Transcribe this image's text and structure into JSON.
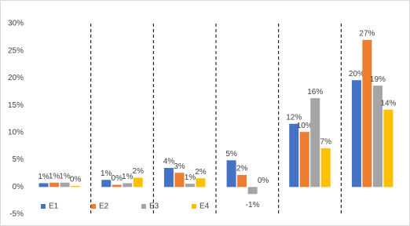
{
  "chart_data": {
    "type": "bar",
    "categories": [
      null,
      null,
      null,
      null,
      null,
      null
    ],
    "series": [
      {
        "name": "E1",
        "color": "#4472c4",
        "values": [
          0.7,
          1.3,
          3.5,
          4.9,
          11.6,
          19.6
        ],
        "value_labels": [
          "1%",
          "1%",
          "4%",
          "5%",
          "12%",
          "20%"
        ]
      },
      {
        "name": "E2",
        "color": "#ed7d31",
        "values": [
          0.8,
          0.4,
          2.6,
          2.2,
          10.1,
          27
        ],
        "value_labels": [
          "1%",
          "0%",
          "3%",
          "2%",
          "10%",
          "27%"
        ]
      },
      {
        "name": "E3",
        "color": "#a5a5a5",
        "values": [
          0.8,
          0.7,
          0.6,
          -1.3,
          16.3,
          18.6
        ],
        "value_labels": [
          "1%",
          "1%",
          "1%",
          "-1%",
          "16%",
          "19%"
        ]
      },
      {
        "name": "E4",
        "color": "#ffc000",
        "values": [
          0.2,
          1.7,
          1.6,
          0.0,
          7.1,
          14.2
        ],
        "value_labels": [
          "0%",
          "2%",
          "2%",
          "0%",
          "7%",
          "14%"
        ]
      }
    ],
    "ylim": [
      -5,
      30
    ],
    "yticks": [
      {
        "value": -5,
        "label": "-5%"
      },
      {
        "value": 0,
        "label": "0%"
      },
      {
        "value": 5,
        "label": "5%"
      },
      {
        "value": 10,
        "label": "10%"
      },
      {
        "value": 15,
        "label": "15%"
      },
      {
        "value": 20,
        "label": "20%"
      },
      {
        "value": 25,
        "label": "25%"
      },
      {
        "value": 30,
        "label": "30%"
      }
    ],
    "grid": false,
    "group_separators": true,
    "legend": "bottom-left"
  }
}
